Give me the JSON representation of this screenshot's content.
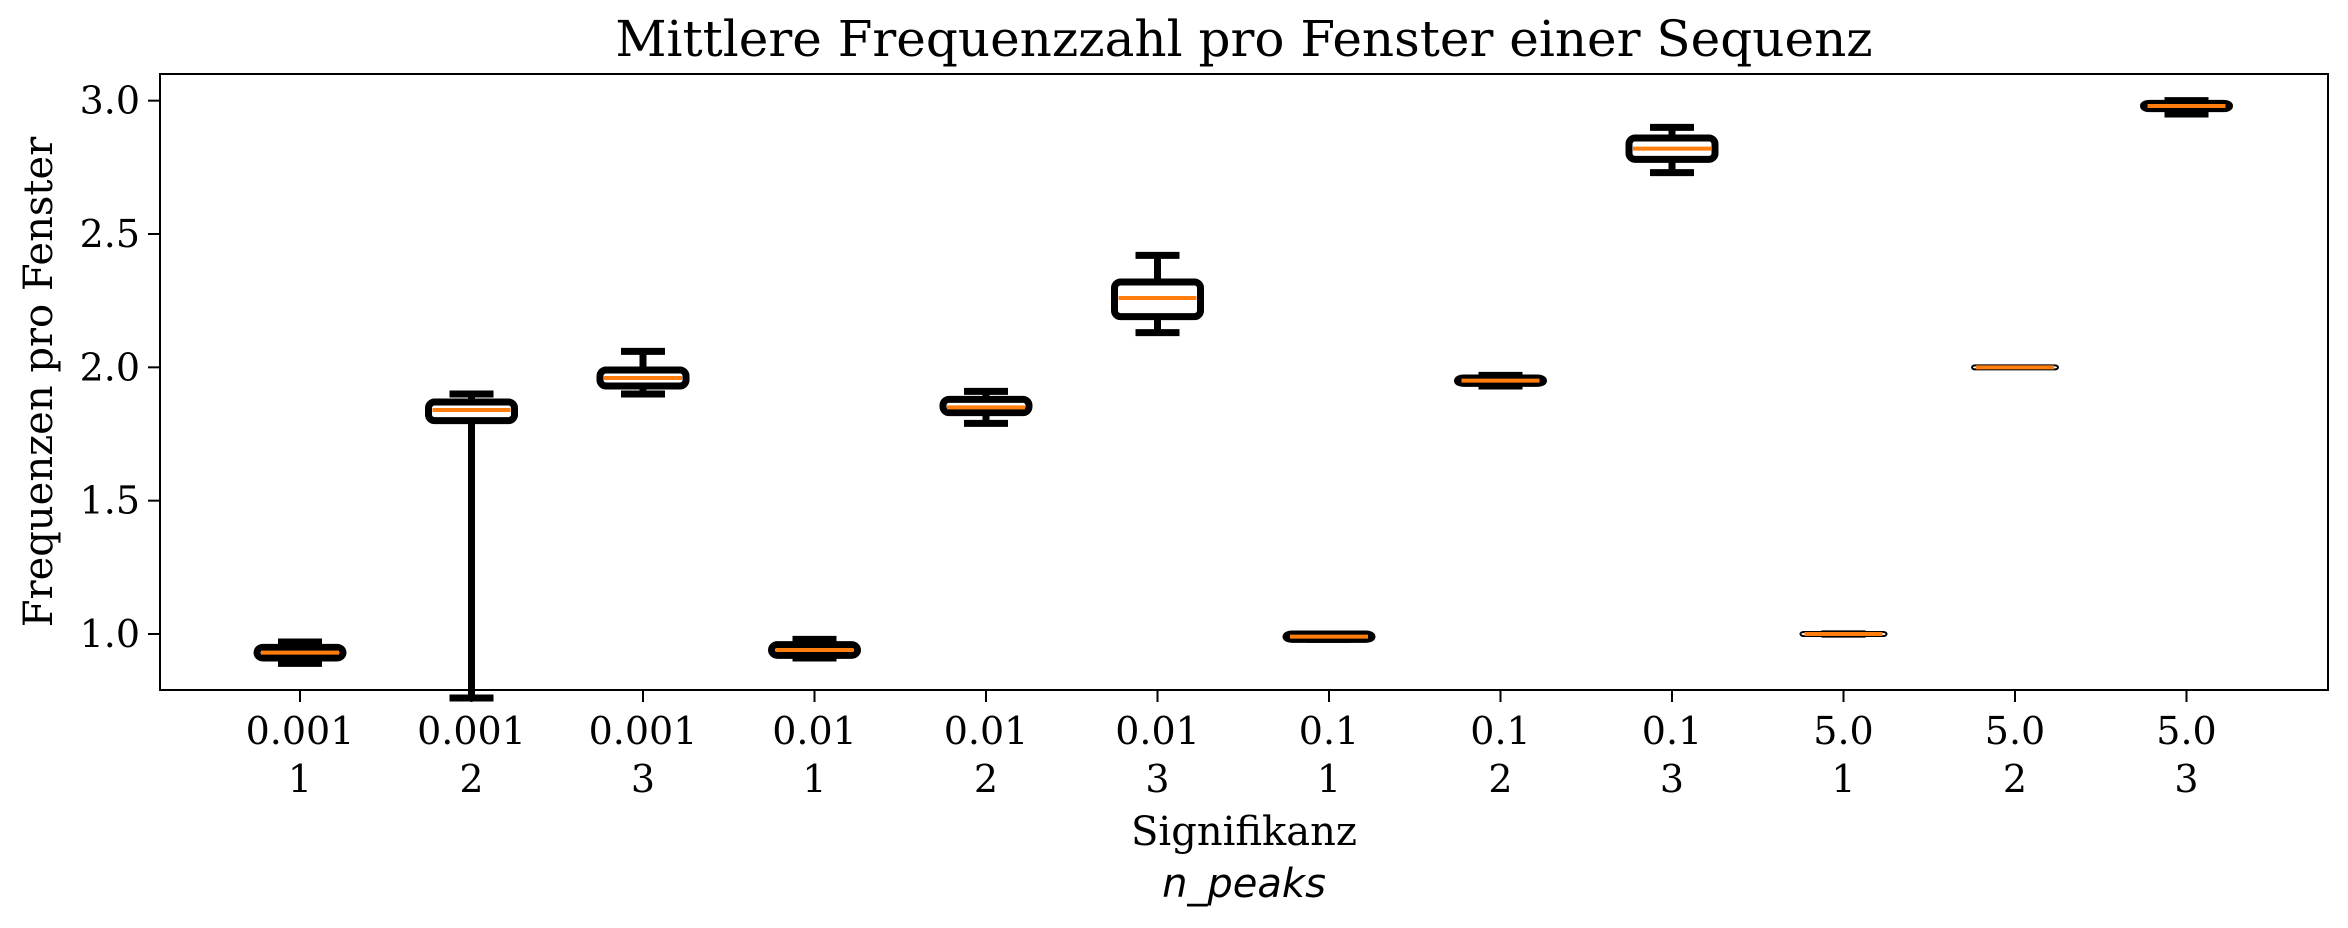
{
  "chart_data": {
    "type": "boxplot",
    "title": "Mittlere Frequenzzahl pro Fenster einer Sequenz",
    "xlabel": "Signifikanz",
    "xlabel_sub": "n_peaks",
    "ylabel": "Frequenzen pro Fenster",
    "ylim": [
      0.79,
      3.1
    ],
    "yticks": [
      1.0,
      1.5,
      2.0,
      2.5,
      3.0
    ],
    "ytick_labels": [
      "1.0",
      "1.5",
      "2.0",
      "2.5",
      "3.0"
    ],
    "grid": false,
    "colors": {
      "box": "#000000",
      "median": "#ff7f0e"
    },
    "categories": [
      {
        "signifikanz": "0.001",
        "n_peaks": "1",
        "whisker_low": 0.89,
        "q1": 0.91,
        "median": 0.93,
        "q3": 0.95,
        "whisker_high": 0.97
      },
      {
        "signifikanz": "0.001",
        "n_peaks": "2",
        "whisker_low": 0.76,
        "q1": 1.8,
        "median": 1.84,
        "q3": 1.87,
        "whisker_high": 1.9
      },
      {
        "signifikanz": "0.001",
        "n_peaks": "3",
        "whisker_low": 1.9,
        "q1": 1.93,
        "median": 1.96,
        "q3": 1.99,
        "whisker_high": 2.06
      },
      {
        "signifikanz": "0.01",
        "n_peaks": "1",
        "whisker_low": 0.91,
        "q1": 0.92,
        "median": 0.94,
        "q3": 0.96,
        "whisker_high": 0.98
      },
      {
        "signifikanz": "0.01",
        "n_peaks": "2",
        "whisker_low": 1.79,
        "q1": 1.83,
        "median": 1.85,
        "q3": 1.88,
        "whisker_high": 1.91
      },
      {
        "signifikanz": "0.01",
        "n_peaks": "3",
        "whisker_low": 2.13,
        "q1": 2.19,
        "median": 2.26,
        "q3": 2.32,
        "whisker_high": 2.42
      },
      {
        "signifikanz": "0.1",
        "n_peaks": "1",
        "whisker_low": 0.98,
        "q1": 0.98,
        "median": 0.99,
        "q3": 1.0,
        "whisker_high": 1.0
      },
      {
        "signifikanz": "0.1",
        "n_peaks": "2",
        "whisker_low": 1.93,
        "q1": 1.94,
        "median": 1.95,
        "q3": 1.96,
        "whisker_high": 1.97
      },
      {
        "signifikanz": "0.1",
        "n_peaks": "3",
        "whisker_low": 2.73,
        "q1": 2.78,
        "median": 2.82,
        "q3": 2.86,
        "whisker_high": 2.9
      },
      {
        "signifikanz": "5.0",
        "n_peaks": "1",
        "whisker_low": 0.99,
        "q1": 0.995,
        "median": 1.0,
        "q3": 1.005,
        "whisker_high": 1.01
      },
      {
        "signifikanz": "5.0",
        "n_peaks": "2",
        "whisker_low": 1.995,
        "q1": 1.997,
        "median": 2.0,
        "q3": 2.003,
        "whisker_high": 2.005
      },
      {
        "signifikanz": "5.0",
        "n_peaks": "3",
        "whisker_low": 2.95,
        "q1": 2.97,
        "median": 2.98,
        "q3": 2.99,
        "whisker_high": 3.0
      }
    ]
  }
}
